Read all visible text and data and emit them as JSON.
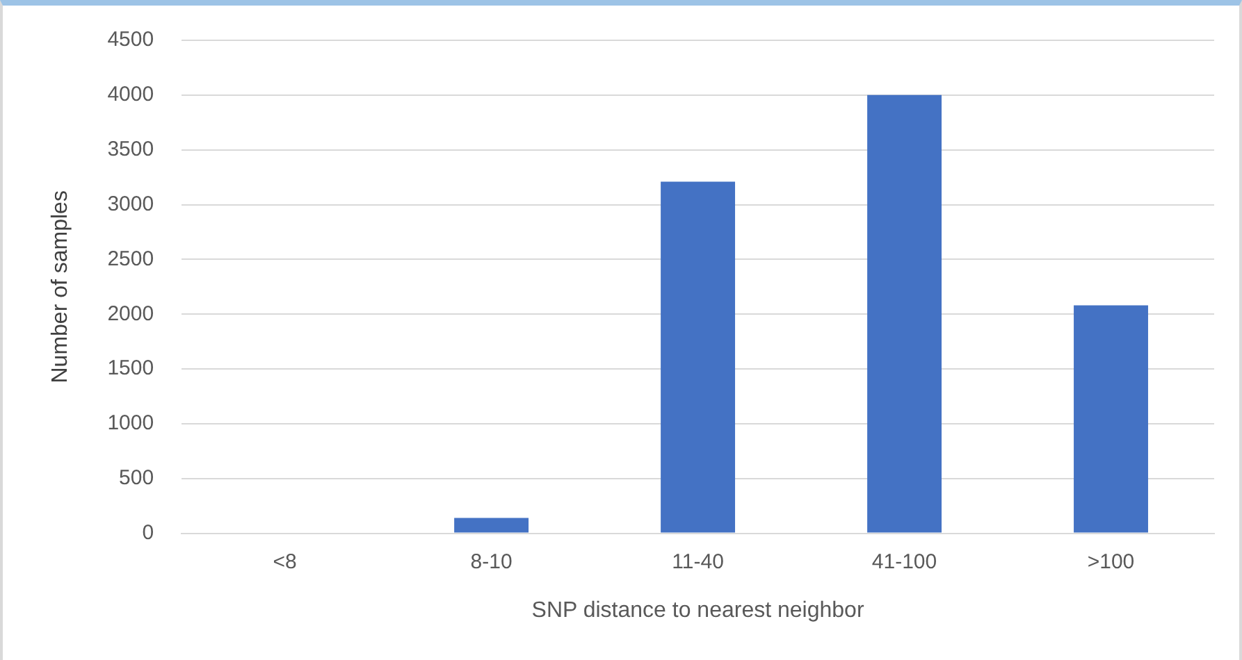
{
  "chart_data": {
    "type": "bar",
    "xlabel": "SNP distance to nearest neighbor",
    "ylabel": "Number of samples",
    "categories": [
      "<8",
      "8-10",
      "11-40",
      "41-100",
      ">100"
    ],
    "values": [
      0,
      140,
      3210,
      4000,
      2080
    ],
    "color": "#4472c4",
    "ylim": [
      0,
      4500
    ],
    "yticks": [
      0,
      500,
      1000,
      1500,
      2000,
      2500,
      3000,
      3500,
      4000,
      4500
    ],
    "grid": "y",
    "legend": false
  }
}
